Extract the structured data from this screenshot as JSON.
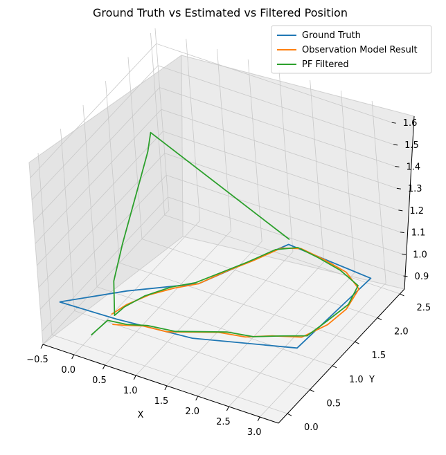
{
  "chart_data": {
    "type": "line",
    "projection": "3d",
    "title": "Ground Truth vs Estimated vs Filtered Position",
    "xlabel": "X",
    "ylabel": "Y",
    "zlabel": "",
    "xlim": [
      -0.5,
      3.3
    ],
    "ylim": [
      -0.2,
      2.6
    ],
    "zlim": [
      0.84,
      1.67
    ],
    "x_ticks": [
      "−0.5",
      "0.0",
      "0.5",
      "1.0",
      "1.5",
      "2.0",
      "2.5",
      "3.0"
    ],
    "y_ticks": [
      "0.0",
      "0.5",
      "1.0",
      "1.5",
      "2.0",
      "2.5"
    ],
    "z_ticks": [
      "0.9",
      "1.0",
      "1.1",
      "1.2",
      "1.3",
      "1.4",
      "1.5",
      "1.6"
    ],
    "grid": true,
    "legend": "top-right",
    "series": [
      {
        "name": "Ground Truth",
        "color": "#1f77b4",
        "points": [
          [
            -0.35,
            0.02,
            1.0
          ],
          [
            0.55,
            0.05,
            1.0
          ],
          [
            1.7,
            0.15,
            1.0
          ],
          [
            3.1,
            0.55,
            1.0
          ],
          [
            3.2,
            2.05,
            1.0
          ],
          [
            1.8,
            2.15,
            1.0
          ],
          [
            1.15,
            1.05,
            1.0
          ],
          [
            0.35,
            0.55,
            1.0
          ],
          [
            -0.35,
            0.02,
            1.0
          ]
        ]
      },
      {
        "name": "Observation Model Result",
        "color": "#ff7f0e",
        "points": [
          [
            0.45,
            0.08,
            0.96
          ],
          [
            0.65,
            0.1,
            0.97
          ],
          [
            0.9,
            0.15,
            0.98
          ],
          [
            1.2,
            0.25,
            0.96
          ],
          [
            1.55,
            0.35,
            0.97
          ],
          [
            1.9,
            0.45,
            0.98
          ],
          [
            2.25,
            0.55,
            0.97
          ],
          [
            2.6,
            0.68,
            0.98
          ],
          [
            2.95,
            0.85,
            0.97
          ],
          [
            3.15,
            1.15,
            0.98
          ],
          [
            3.2,
            1.5,
            0.98
          ],
          [
            3.15,
            1.85,
            0.99
          ],
          [
            2.8,
            2.05,
            0.99
          ],
          [
            2.4,
            2.1,
            1.0
          ],
          [
            2.0,
            2.15,
            1.0
          ],
          [
            1.75,
            2.05,
            1.0
          ],
          [
            1.55,
            1.7,
            1.0
          ],
          [
            1.35,
            1.4,
            1.0
          ],
          [
            1.15,
            1.05,
            1.0
          ],
          [
            0.9,
            0.85,
            1.0
          ],
          [
            0.65,
            0.65,
            0.99
          ],
          [
            0.45,
            0.4,
            0.98
          ],
          [
            0.35,
            0.2,
            0.97
          ]
        ]
      },
      {
        "name": "PF Filtered",
        "color": "#2ca02c",
        "points": [
          [
            0.15,
            0.0,
            0.9
          ],
          [
            0.4,
            0.05,
            0.98
          ],
          [
            0.65,
            0.12,
            0.97
          ],
          [
            0.95,
            0.18,
            0.98
          ],
          [
            1.3,
            0.3,
            0.96
          ],
          [
            1.65,
            0.4,
            0.97
          ],
          [
            2.0,
            0.5,
            0.98
          ],
          [
            2.35,
            0.6,
            0.97
          ],
          [
            2.7,
            0.72,
            0.98
          ],
          [
            3.0,
            0.9,
            0.97
          ],
          [
            3.1,
            1.2,
            0.98
          ],
          [
            3.2,
            1.55,
            0.99
          ],
          [
            3.1,
            1.9,
            0.99
          ],
          [
            2.7,
            2.05,
            0.99
          ],
          [
            2.3,
            2.1,
            1.0
          ],
          [
            1.95,
            2.15,
            1.0
          ],
          [
            1.7,
            2.0,
            1.0
          ],
          [
            1.5,
            1.65,
            1.0
          ],
          [
            1.3,
            1.35,
            1.0
          ],
          [
            1.1,
            1.05,
            1.0
          ],
          [
            0.85,
            0.85,
            1.0
          ],
          [
            0.6,
            0.6,
            0.99
          ],
          [
            0.45,
            0.35,
            0.98
          ],
          [
            0.4,
            0.2,
            0.97
          ],
          [
            0.35,
            0.3,
            1.1
          ],
          [
            0.3,
            0.6,
            1.2
          ],
          [
            0.25,
            0.9,
            1.28
          ],
          [
            0.2,
            1.2,
            1.36
          ],
          [
            0.15,
            1.45,
            1.42
          ],
          [
            0.1,
            1.6,
            1.47
          ],
          [
            1.7,
            2.3,
            0.98
          ]
        ]
      }
    ]
  }
}
